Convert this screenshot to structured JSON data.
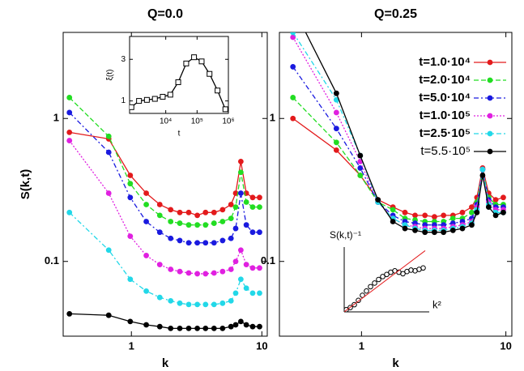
{
  "chart_data": [
    {
      "type": "line",
      "title": "Q=0.0",
      "xlabel": "k",
      "ylabel": "S(k,t)",
      "xscale": "log",
      "yscale": "log",
      "xlim": [
        0.3,
        11
      ],
      "ylim": [
        0.03,
        4
      ],
      "xticks": [
        1,
        10
      ],
      "yticks": [
        0.1,
        1
      ],
      "x": [
        0.335,
        0.67,
        0.98,
        1.3,
        1.65,
        2.0,
        2.35,
        2.75,
        3.2,
        3.7,
        4.3,
        5.0,
        5.8,
        6.3,
        6.9,
        7.6,
        8.5,
        9.6
      ],
      "series": [
        {
          "color": "#e31a1c",
          "dash": "solid",
          "marker": "circle",
          "values": [
            0.8,
            0.72,
            0.4,
            0.3,
            0.25,
            0.23,
            0.22,
            0.22,
            0.21,
            0.22,
            0.22,
            0.23,
            0.25,
            0.3,
            0.5,
            0.3,
            0.28,
            0.28
          ]
        },
        {
          "color": "#22dd22",
          "dash": "dashed",
          "marker": "circle",
          "values": [
            1.4,
            0.75,
            0.35,
            0.25,
            0.21,
            0.19,
            0.185,
            0.18,
            0.18,
            0.18,
            0.185,
            0.19,
            0.2,
            0.24,
            0.42,
            0.26,
            0.24,
            0.24
          ]
        },
        {
          "color": "#1a1adf",
          "dash": "dashdot",
          "marker": "circle",
          "values": [
            1.1,
            0.58,
            0.28,
            0.19,
            0.16,
            0.145,
            0.14,
            0.135,
            0.135,
            0.135,
            0.135,
            0.14,
            0.145,
            0.17,
            0.3,
            0.18,
            0.16,
            0.16
          ]
        },
        {
          "color": "#e020e0",
          "dash": "dotted",
          "marker": "circle",
          "values": [
            0.7,
            0.3,
            0.15,
            0.11,
            0.095,
            0.088,
            0.085,
            0.083,
            0.082,
            0.082,
            0.083,
            0.085,
            0.088,
            0.1,
            0.12,
            0.095,
            0.09,
            0.09
          ]
        },
        {
          "color": "#22d8e8",
          "dash": "dashdot",
          "marker": "circle",
          "values": [
            0.22,
            0.12,
            0.075,
            0.062,
            0.056,
            0.053,
            0.051,
            0.05,
            0.05,
            0.05,
            0.05,
            0.051,
            0.053,
            0.06,
            0.075,
            0.065,
            0.06,
            0.06
          ]
        },
        {
          "color": "#000000",
          "dash": "solid",
          "marker": "circle",
          "values": [
            0.043,
            0.042,
            0.038,
            0.036,
            0.035,
            0.034,
            0.034,
            0.034,
            0.034,
            0.034,
            0.034,
            0.034,
            0.035,
            0.036,
            0.038,
            0.036,
            0.035,
            0.035
          ]
        }
      ]
    },
    {
      "type": "line",
      "title": "Q=0.25",
      "xlabel": "k",
      "xscale": "log",
      "yscale": "log",
      "xlim": [
        0.27,
        11
      ],
      "ylim": [
        0.03,
        4
      ],
      "xticks": [
        1,
        10
      ],
      "yticks": [
        0.1,
        1
      ],
      "legend": "upper right",
      "x": [
        0.335,
        0.67,
        0.98,
        1.3,
        1.65,
        2.0,
        2.35,
        2.75,
        3.2,
        3.7,
        4.3,
        5.0,
        5.8,
        6.3,
        6.9,
        7.6,
        8.5,
        9.6
      ],
      "series": [
        {
          "name": "t=1.0·10⁴",
          "color": "#e31a1c",
          "dash": "solid",
          "marker": "circle",
          "values": [
            1.0,
            0.6,
            0.4,
            0.27,
            0.24,
            0.22,
            0.21,
            0.21,
            0.205,
            0.21,
            0.21,
            0.22,
            0.24,
            0.28,
            0.45,
            0.3,
            0.27,
            0.28
          ]
        },
        {
          "name": "t=2.0·10⁴",
          "color": "#22dd22",
          "dash": "dashed",
          "marker": "circle",
          "values": [
            1.4,
            0.68,
            0.4,
            0.26,
            0.23,
            0.2,
            0.195,
            0.19,
            0.19,
            0.19,
            0.2,
            0.2,
            0.22,
            0.26,
            0.44,
            0.28,
            0.25,
            0.25
          ]
        },
        {
          "name": "t=5.0·10⁴",
          "color": "#1a1adf",
          "dash": "dashdot",
          "marker": "circle",
          "values": [
            2.3,
            0.85,
            0.45,
            0.26,
            0.21,
            0.19,
            0.185,
            0.18,
            0.18,
            0.18,
            0.185,
            0.19,
            0.2,
            0.25,
            0.44,
            0.27,
            0.24,
            0.24
          ]
        },
        {
          "name": "t=1.0·10⁵",
          "color": "#e020e0",
          "dash": "dotted",
          "marker": "circle",
          "values": [
            3.7,
            1.1,
            0.5,
            0.26,
            0.2,
            0.18,
            0.175,
            0.17,
            0.17,
            0.17,
            0.175,
            0.18,
            0.19,
            0.24,
            0.44,
            0.26,
            0.23,
            0.23
          ]
        },
        {
          "name": "t=2.5·10⁵",
          "color": "#22d8e8",
          "dash": "dashdot",
          "marker": "circle",
          "values": [
            4.0,
            1.35,
            0.55,
            0.26,
            0.2,
            0.18,
            0.17,
            0.165,
            0.165,
            0.165,
            0.17,
            0.175,
            0.185,
            0.23,
            0.44,
            0.25,
            0.22,
            0.22
          ]
        },
        {
          "name": "t=5.5·10⁵",
          "color": "#000000",
          "dash": "solid",
          "marker": "circle",
          "values": [
            6.0,
            1.5,
            0.55,
            0.27,
            0.19,
            0.17,
            0.165,
            0.16,
            0.16,
            0.16,
            0.165,
            0.17,
            0.18,
            0.22,
            0.4,
            0.24,
            0.21,
            0.22
          ]
        }
      ]
    },
    {
      "type": "line",
      "xlabel": "t",
      "ylabel": "ξ(t)",
      "xscale": "log",
      "yscale": "linear",
      "xlim": [
        700,
        1000000
      ],
      "ylim": [
        0.4,
        4.1
      ],
      "xticks": [
        {
          "value": 10000,
          "label": "10⁴"
        },
        {
          "value": 100000,
          "label": "10⁵"
        },
        {
          "value": 1000000,
          "label": "10⁶"
        }
      ],
      "yticks": [
        1,
        3
      ],
      "x": [
        800,
        1400,
        2500,
        4500,
        8000,
        14000,
        25000,
        45000,
        80000,
        140000,
        250000,
        450000,
        800000
      ],
      "series": [
        {
          "color": "#000000",
          "dash": "solid",
          "marker": "square-open",
          "values": [
            0.7,
            1.0,
            1.05,
            1.1,
            1.2,
            1.3,
            1.9,
            2.8,
            3.1,
            2.9,
            2.3,
            1.5,
            0.6
          ]
        }
      ]
    },
    {
      "type": "line",
      "xlabel": "k²",
      "ylabel": "S(k,t)⁻¹",
      "xscale": "linear",
      "yscale": "linear",
      "xlim": [
        0,
        21
      ],
      "ylim": [
        0,
        9
      ],
      "series": [
        {
          "color": "#000000",
          "dash": "none",
          "marker": "circle-open",
          "x": [
            0.5,
            1.5,
            2.5,
            3.5,
            4.5,
            5.5,
            6.5,
            7.5,
            8.5,
            9.5,
            10.5,
            11.5,
            12.5,
            13.5,
            14.5,
            15.5,
            16.5,
            17.5,
            18.5,
            19.5
          ],
          "values": [
            0.3,
            0.6,
            1.0,
            1.6,
            2.3,
            2.9,
            3.5,
            4.0,
            4.5,
            4.9,
            5.2,
            5.5,
            5.7,
            5.5,
            5.3,
            5.6,
            5.8,
            5.7,
            5.9,
            6.1
          ]
        },
        {
          "color": "#e31a1c",
          "dash": "solid",
          "marker": "none",
          "x": [
            0,
            20
          ],
          "values": [
            0,
            8.5
          ]
        }
      ]
    }
  ]
}
